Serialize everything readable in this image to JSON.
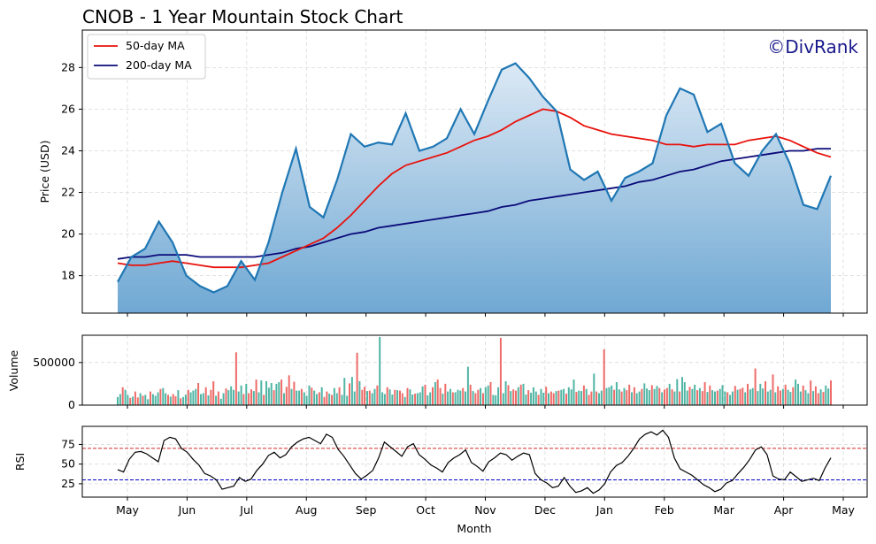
{
  "title": "CNOB - 1 Year Mountain Stock Chart",
  "watermark": "©DivRank",
  "colors": {
    "price_line": "#1f77b4",
    "area_top": "#dce9f5",
    "area_bottom": "#6fa8d3",
    "ma50": "#e8120c",
    "ma200": "#0b0b7a",
    "vol_up": "#4fb5a4",
    "vol_down": "#ee6b68",
    "rsi_line": "#000000",
    "rsi_upper": "#d62728",
    "rsi_lower": "#0000cc"
  },
  "chart_data": [
    {
      "type": "area",
      "panel": "price",
      "ylabel": "Price (USD)",
      "ylim": [
        16.2,
        29.8
      ],
      "yticks": [
        "18",
        "20",
        "22",
        "24",
        "26",
        "28"
      ],
      "grid": true,
      "legend_position": "top-left",
      "x": [
        "Apr 23",
        "May 1",
        "May 10",
        "May 17",
        "May 24",
        "May 31",
        "Jun 7",
        "Jun 14",
        "Jun 21",
        "Jun 28",
        "Jul 5",
        "Jul 12",
        "Jul 19",
        "Jul 26",
        "Aug 2",
        "Aug 9",
        "Aug 16",
        "Aug 23",
        "Aug 30",
        "Sep 6",
        "Sep 13",
        "Sep 20",
        "Sep 27",
        "Oct 4",
        "Oct 11",
        "Oct 18",
        "Oct 25",
        "Nov 1",
        "Nov 8",
        "Nov 15",
        "Nov 22",
        "Nov 29",
        "Dec 6",
        "Dec 13",
        "Dec 20",
        "Dec 27",
        "Jan 3",
        "Jan 10",
        "Jan 17",
        "Jan 24",
        "Jan 31",
        "Feb 7",
        "Feb 14",
        "Feb 21",
        "Feb 28",
        "Mar 7",
        "Mar 14",
        "Mar 21",
        "Mar 28",
        "Apr 4",
        "Apr 11",
        "Apr 18",
        "Apr 22"
      ],
      "series": [
        {
          "name": "Price",
          "values": [
            17.7,
            18.9,
            19.3,
            20.6,
            19.6,
            18.0,
            17.5,
            17.2,
            17.5,
            18.7,
            17.8,
            19.6,
            22.0,
            24.1,
            21.3,
            20.8,
            22.6,
            24.8,
            24.2,
            24.4,
            24.3,
            25.8,
            24.0,
            24.2,
            24.6,
            26.0,
            24.8,
            26.4,
            27.9,
            28.2,
            27.5,
            26.6,
            25.9,
            23.1,
            22.6,
            23.0,
            21.6,
            22.7,
            23.0,
            23.4,
            25.7,
            27.0,
            26.7,
            24.9,
            25.3,
            23.4,
            22.8,
            24.0,
            24.8,
            23.4,
            21.4,
            21.2,
            22.8
          ]
        },
        {
          "name": "50-day MA",
          "values": [
            18.6,
            18.5,
            18.5,
            18.6,
            18.7,
            18.6,
            18.5,
            18.4,
            18.4,
            18.4,
            18.5,
            18.6,
            18.9,
            19.2,
            19.5,
            19.8,
            20.3,
            20.9,
            21.6,
            22.3,
            22.9,
            23.3,
            23.5,
            23.7,
            23.9,
            24.2,
            24.5,
            24.7,
            25.0,
            25.4,
            25.7,
            26.0,
            25.9,
            25.6,
            25.2,
            25.0,
            24.8,
            24.7,
            24.6,
            24.5,
            24.3,
            24.3,
            24.2,
            24.3,
            24.3,
            24.3,
            24.5,
            24.6,
            24.7,
            24.5,
            24.2,
            23.9,
            23.7
          ]
        },
        {
          "name": "200-day MA",
          "values": [
            18.8,
            18.9,
            18.9,
            19.0,
            19.0,
            19.0,
            18.9,
            18.9,
            18.9,
            18.9,
            18.9,
            19.0,
            19.1,
            19.3,
            19.4,
            19.6,
            19.8,
            20.0,
            20.1,
            20.3,
            20.4,
            20.5,
            20.6,
            20.7,
            20.8,
            20.9,
            21.0,
            21.1,
            21.3,
            21.4,
            21.6,
            21.7,
            21.8,
            21.9,
            22.0,
            22.1,
            22.2,
            22.3,
            22.5,
            22.6,
            22.8,
            23.0,
            23.1,
            23.3,
            23.5,
            23.6,
            23.7,
            23.8,
            23.9,
            24.0,
            24.0,
            24.1,
            24.1
          ]
        }
      ]
    },
    {
      "type": "bar",
      "panel": "volume",
      "ylabel": "Volume",
      "ylim": [
        0,
        820000
      ],
      "yticks": [
        "0",
        "500000"
      ],
      "grid": true,
      "values": [
        95000,
        130000,
        210000,
        180000,
        120000,
        85000,
        100000,
        160000,
        90000,
        140000,
        110000,
        120000,
        70000,
        160000,
        130000,
        110000,
        150000,
        190000,
        200000,
        140000,
        120000,
        100000,
        130000,
        105000,
        175000,
        80000,
        95000,
        125000,
        180000,
        150000,
        170000,
        190000,
        260000,
        130000,
        140000,
        210000,
        115000,
        180000,
        280000,
        110000,
        160000,
        75000,
        140000,
        195000,
        175000,
        220000,
        180000,
        620000,
        160000,
        230000,
        130000,
        250000,
        140000,
        185000,
        165000,
        300000,
        150000,
        290000,
        120000,
        280000,
        205000,
        260000,
        175000,
        250000,
        270000,
        300000,
        140000,
        215000,
        350000,
        190000,
        275000,
        170000,
        170000,
        190000,
        150000,
        110000,
        230000,
        205000,
        170000,
        130000,
        150000,
        210000,
        95000,
        160000,
        135000,
        120000,
        200000,
        140000,
        210000,
        120000,
        320000,
        110000,
        255000,
        330000,
        160000,
        615000,
        280000,
        180000,
        215000,
        165000,
        170000,
        140000,
        190000,
        230000,
        800000,
        150000,
        130000,
        210000,
        185000,
        125000,
        180000,
        175000,
        170000,
        140000,
        95000,
        200000,
        185000,
        125000,
        135000,
        140000,
        150000,
        220000,
        240000,
        115000,
        150000,
        210000,
        270000,
        300000,
        200000,
        135000,
        250000,
        160000,
        190000,
        150000,
        150000,
        180000,
        170000,
        200000,
        160000,
        450000,
        240000,
        165000,
        140000,
        180000,
        200000,
        140000,
        210000,
        230000,
        270000,
        120000,
        115000,
        210000,
        790000,
        140000,
        280000,
        235000,
        165000,
        185000,
        170000,
        210000,
        240000,
        250000,
        125000,
        175000,
        145000,
        210000,
        160000,
        120000,
        190000,
        145000,
        215000,
        140000,
        160000,
        140000,
        165000,
        170000,
        180000,
        190000,
        135000,
        210000,
        185000,
        300000,
        155000,
        170000,
        165000,
        230000,
        190000,
        120000,
        160000,
        370000,
        160000,
        140000,
        170000,
        655000,
        200000,
        210000,
        230000,
        180000,
        270000,
        185000,
        160000,
        200000,
        175000,
        240000,
        150000,
        210000,
        140000,
        160000,
        190000,
        255000,
        195000,
        175000,
        235000,
        190000,
        225000,
        200000,
        150000,
        185000,
        200000,
        250000,
        185000,
        160000,
        305000,
        160000,
        330000,
        270000,
        170000,
        215000,
        190000,
        240000,
        175000,
        200000,
        165000,
        270000,
        155000,
        230000,
        175000,
        160000,
        170000,
        190000,
        235000,
        160000,
        150000,
        120000,
        160000,
        225000,
        180000,
        190000,
        205000,
        150000,
        250000,
        185000,
        200000,
        430000,
        165000,
        250000,
        195000,
        280000,
        160000,
        180000,
        360000,
        150000,
        220000,
        170000,
        190000,
        240000,
        180000,
        155000,
        210000,
        300000,
        250000,
        160000,
        230000,
        175000,
        140000,
        290000,
        165000,
        220000,
        140000,
        185000,
        155000,
        230000,
        195000,
        290000
      ]
    },
    {
      "type": "line",
      "panel": "rsi",
      "ylabel": "RSI",
      "xlabel": "Month",
      "ylim": [
        8,
        98
      ],
      "yticks": [
        "25",
        "50",
        "75"
      ],
      "reference_lines": [
        70,
        30
      ],
      "grid": true,
      "xticks": [
        "May",
        "Jun",
        "Jul",
        "Aug",
        "Sep",
        "Oct",
        "Nov",
        "Dec",
        "Jan",
        "Feb",
        "Mar",
        "Apr",
        "May"
      ],
      "values": [
        43,
        40,
        56,
        65,
        66,
        63,
        58,
        53,
        80,
        84,
        82,
        70,
        65,
        56,
        49,
        38,
        35,
        30,
        18,
        20,
        22,
        33,
        28,
        31,
        42,
        50,
        61,
        65,
        58,
        62,
        72,
        78,
        82,
        84,
        80,
        76,
        88,
        84,
        69,
        60,
        49,
        38,
        31,
        36,
        42,
        58,
        78,
        72,
        66,
        60,
        72,
        76,
        62,
        56,
        49,
        45,
        40,
        52,
        58,
        62,
        68,
        52,
        47,
        41,
        53,
        58,
        64,
        62,
        55,
        60,
        64,
        62,
        38,
        30,
        26,
        20,
        22,
        33,
        22,
        14,
        16,
        20,
        13,
        17,
        25,
        40,
        48,
        52,
        60,
        70,
        82,
        88,
        91,
        87,
        93,
        84,
        58,
        44,
        40,
        36,
        30,
        24,
        20,
        15,
        18,
        26,
        29,
        38,
        46,
        56,
        68,
        72,
        62,
        35,
        31,
        30,
        40,
        34,
        28,
        30,
        32,
        29,
        45,
        58
      ],
      "legend": []
    }
  ]
}
